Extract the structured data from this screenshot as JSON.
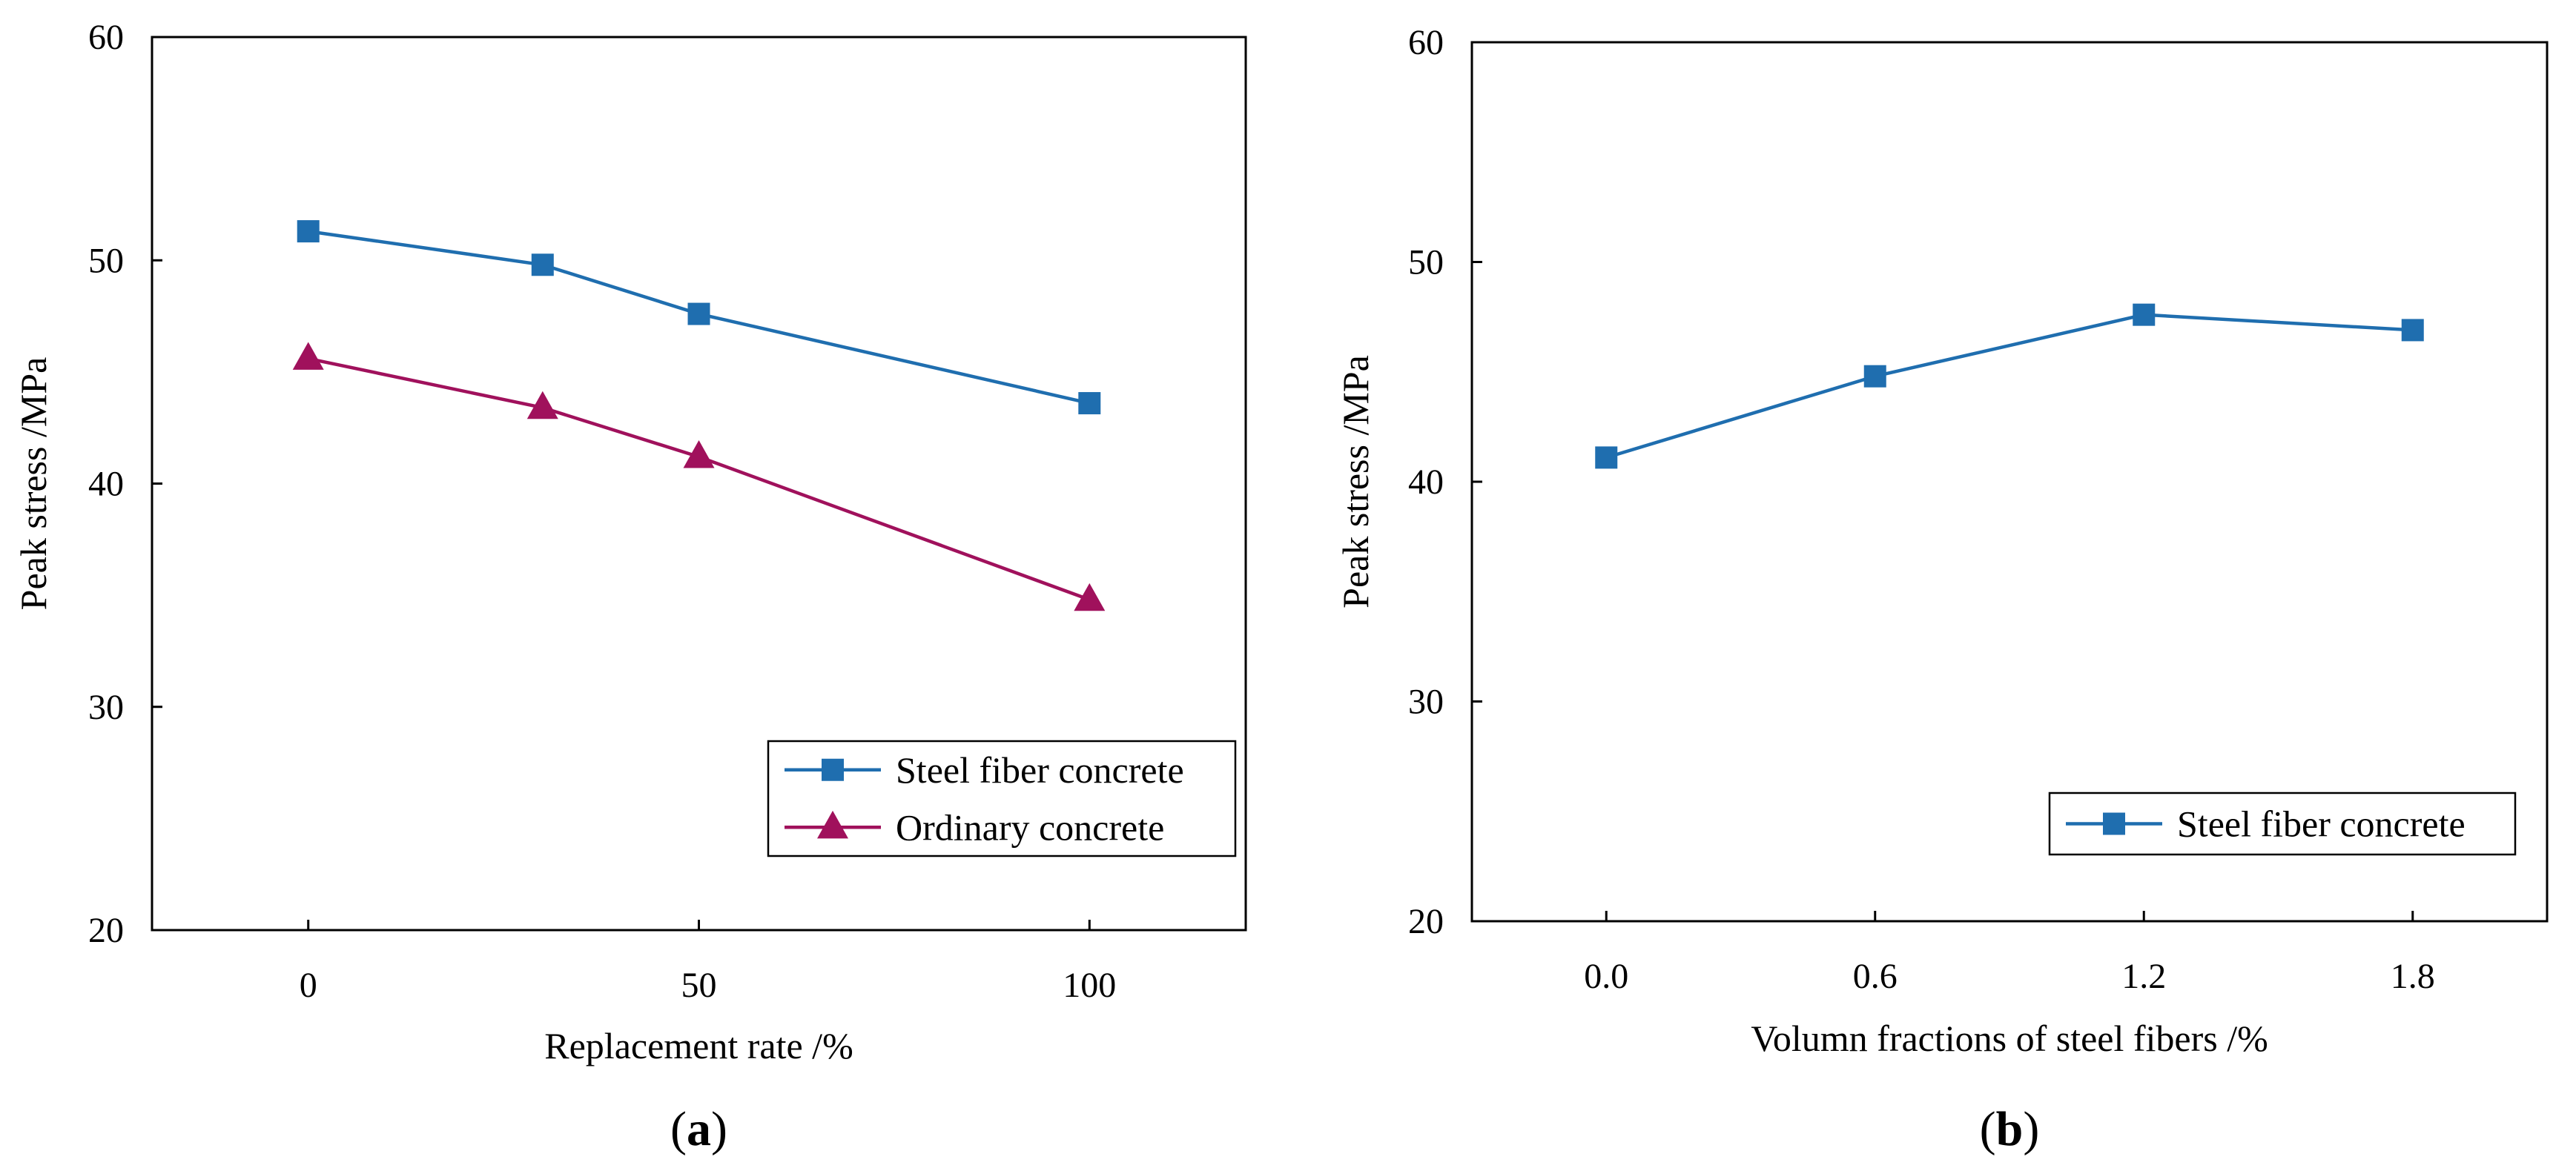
{
  "chart_data": [
    {
      "id": "a",
      "type": "line",
      "panel_label": {
        "open": "(",
        "letter": "a",
        "close": ")"
      },
      "xlabel": "Replacement rate /%",
      "ylabel": "Peak stress /MPa",
      "xlim": [
        -20,
        120
      ],
      "ylim": [
        20,
        60
      ],
      "xticks": [
        0,
        50,
        100
      ],
      "xtick_labels": [
        "0",
        "50",
        "100"
      ],
      "yticks": [
        20,
        30,
        40,
        50,
        60
      ],
      "ytick_labels": [
        "20",
        "30",
        "40",
        "50",
        "60"
      ],
      "grid": false,
      "legend_position": "bottom-right",
      "series": [
        {
          "name": "Steel fiber concrete",
          "color": "#1f6eaf",
          "marker": "square",
          "x": [
            0,
            30,
            50,
            100
          ],
          "y": [
            51.3,
            49.8,
            47.6,
            43.6
          ]
        },
        {
          "name": "Ordinary concrete",
          "color": "#a0115c",
          "marker": "triangle",
          "x": [
            0,
            30,
            50,
            100
          ],
          "y": [
            45.6,
            43.4,
            41.2,
            34.8
          ]
        }
      ]
    },
    {
      "id": "b",
      "type": "line",
      "panel_label": {
        "open": "(",
        "letter": "b",
        "close": ")"
      },
      "xlabel": "Volumn fractions of steel fibers /%",
      "ylabel": "Peak stress /MPa",
      "xlim": [
        -0.3,
        2.1
      ],
      "ylim": [
        20,
        60
      ],
      "xticks": [
        0.0,
        0.6,
        1.2,
        1.8
      ],
      "xtick_labels": [
        "0.0",
        "0.6",
        "1.2",
        "1.8"
      ],
      "yticks": [
        20,
        30,
        40,
        50,
        60
      ],
      "ytick_labels": [
        "20",
        "30",
        "40",
        "50",
        "60"
      ],
      "grid": false,
      "legend_position": "bottom-right",
      "series": [
        {
          "name": "Steel fiber concrete",
          "color": "#1f6eaf",
          "marker": "square",
          "x": [
            0.0,
            0.6,
            1.2,
            1.8
          ],
          "y": [
            41.1,
            44.8,
            47.6,
            46.9
          ]
        }
      ]
    }
  ]
}
